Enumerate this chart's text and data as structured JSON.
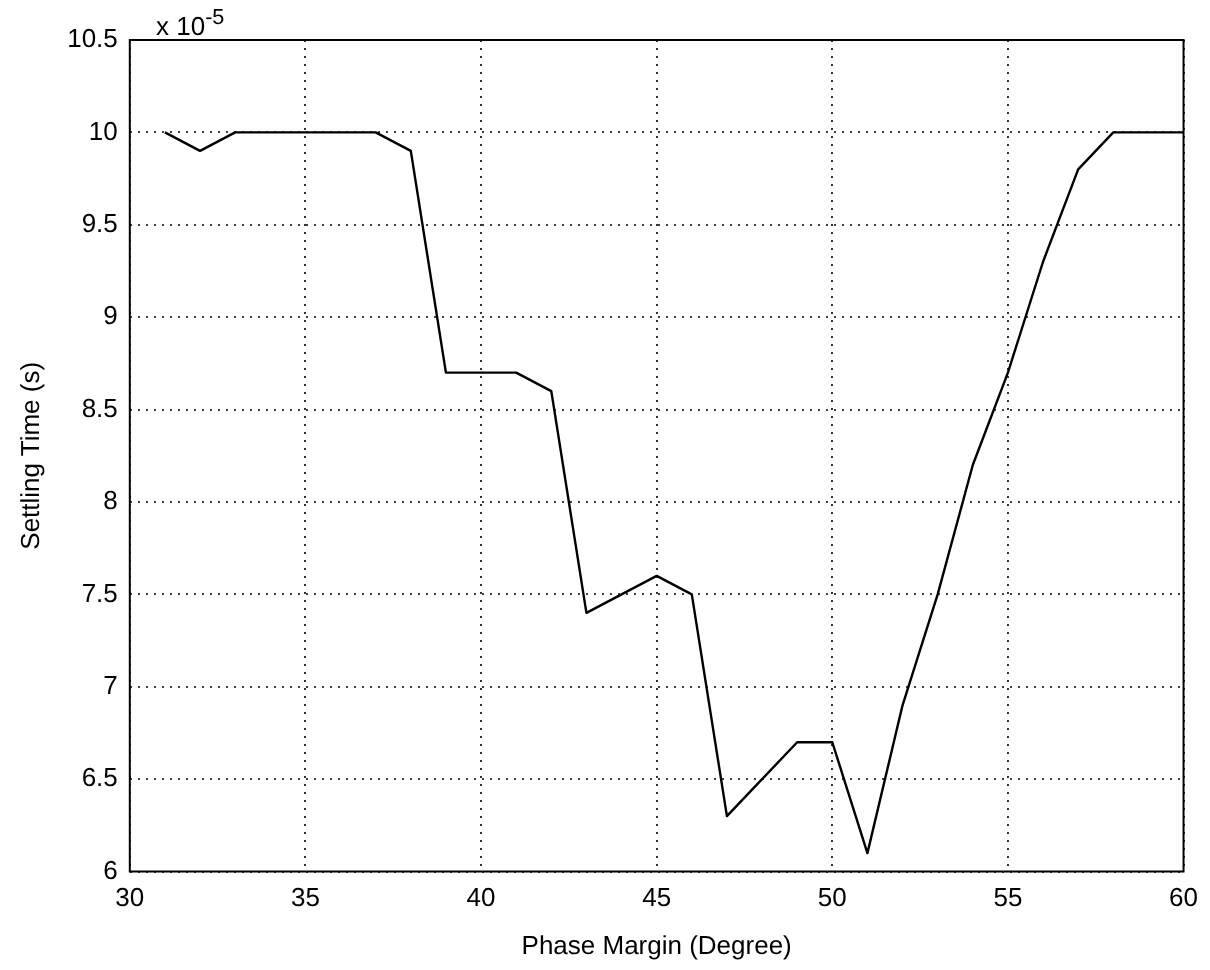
{
  "chart_data": {
    "type": "line",
    "xlabel": "Phase Margin (Degree)",
    "ylabel": "Settling Time (s)",
    "annotations": [
      "x 10$^{-5}$"
    ],
    "x": [
      31,
      32,
      33,
      34,
      35,
      36,
      37,
      38,
      39,
      40,
      41,
      42,
      43,
      44,
      45,
      46,
      47,
      48,
      49,
      50,
      51,
      52,
      53,
      54,
      55,
      56,
      57,
      58,
      59,
      60
    ],
    "series": [
      {
        "color": "#000000",
        "values": [
          10,
          9.9,
          10,
          10,
          10,
          10,
          10,
          9.9,
          8.7,
          8.7,
          8.7,
          8.6,
          7.4,
          7.5,
          7.6,
          7.5,
          6.3,
          6.5,
          6.7,
          6.7,
          6.1,
          6.9,
          7.5,
          8.2,
          8.7,
          9.3,
          9.8,
          10,
          10,
          10
        ]
      }
    ],
    "xlim": [
      30,
      60
    ],
    "xticks": [
      30,
      35,
      40,
      45,
      50,
      55,
      60
    ],
    "ylim": [
      6,
      10.5
    ],
    "yticks": [
      6,
      6.5,
      7,
      7.5,
      8,
      8.5,
      9,
      9.5,
      10,
      10.5
    ],
    "grid": true,
    "legend": false,
    "marker": "none",
    "line_style": "solid"
  }
}
